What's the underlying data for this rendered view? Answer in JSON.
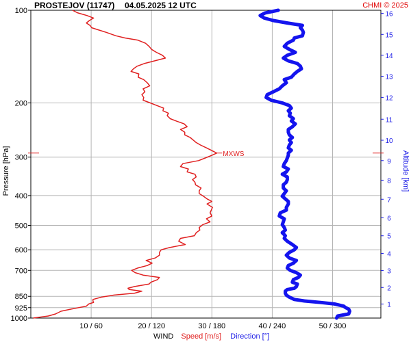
{
  "header": {
    "station": "PROSTEJOV (11747)",
    "datetime": "04.05.2025 12 UTC",
    "credit": "CHMI © 2025"
  },
  "colors": {
    "speed": "#e02020",
    "direction": "#1414ee",
    "altitude_axis": "#1a1ae6",
    "grid": "#b4b4b4",
    "credit": "#e00000"
  },
  "chart_data": {
    "type": "line",
    "title": "PROSTEJOV (11747)   04.05.2025 12 UTC",
    "ylabel": "Pressure [hPa]",
    "ylabel_right": "Altitude [km]",
    "xlabel": {
      "prefix": "WIND",
      "speed": "Speed [m/s]",
      "direction": "Direction [°]"
    },
    "y_scale": "log",
    "ylim_hpa": [
      1000,
      100
    ],
    "pressure_ticks": [
      100,
      200,
      300,
      400,
      500,
      600,
      700,
      850,
      925,
      1000
    ],
    "altitude_ticks_km": [
      1,
      2,
      3,
      4,
      5,
      6,
      7,
      8,
      9,
      10,
      11,
      12,
      13,
      14,
      15,
      16
    ],
    "altitude_positions_hpa": [
      900.2,
      795.4,
      701.0,
      616.8,
      540.4,
      472.2,
      411.1,
      356.5,
      307.9,
      264.4,
      225.9,
      191.9,
      163.9,
      140.0,
      119.8,
      102.4
    ],
    "x_ticks": [
      {
        "speed": 10,
        "direction": 60,
        "label": "10 / 60"
      },
      {
        "speed": 20,
        "direction": 120,
        "label": "20 / 120"
      },
      {
        "speed": 30,
        "direction": 180,
        "label": "30 / 180"
      },
      {
        "speed": 40,
        "direction": 240,
        "label": "40 / 240"
      },
      {
        "speed": 50,
        "direction": 300,
        "label": "50 / 300"
      }
    ],
    "xlim_speed": [
      0,
      58
    ],
    "grid": true,
    "mxws": {
      "label": "MXWS",
      "pressure_hpa": 291,
      "speed": 30.8
    },
    "series": [
      {
        "name": "Speed [m/s]",
        "unit": "m/s",
        "points": [
          [
            1000,
            0.4
          ],
          [
            985,
            2.9
          ],
          [
            970,
            4.1
          ],
          [
            950,
            5.0
          ],
          [
            935,
            6.7
          ],
          [
            925,
            7.9
          ],
          [
            915,
            9.2
          ],
          [
            900,
            9.6
          ],
          [
            890,
            10.4
          ],
          [
            880,
            10.3
          ],
          [
            870,
            10.3
          ],
          [
            855,
            11.7
          ],
          [
            842,
            13.8
          ],
          [
            830,
            17.2
          ],
          [
            818,
            18.4
          ],
          [
            808,
            16.3
          ],
          [
            800,
            16.1
          ],
          [
            790,
            17.2
          ],
          [
            775,
            19.6
          ],
          [
            765,
            19.9
          ],
          [
            750,
            21.0
          ],
          [
            738,
            21.3
          ],
          [
            725,
            18.6
          ],
          [
            712,
            17.3
          ],
          [
            700,
            16.7
          ],
          [
            688,
            17.7
          ],
          [
            675,
            19.3
          ],
          [
            663,
            20.1
          ],
          [
            650,
            19.1
          ],
          [
            638,
            20.6
          ],
          [
            625,
            21.3
          ],
          [
            612,
            21.3
          ],
          [
            600,
            21.6
          ],
          [
            590,
            23.0
          ],
          [
            577,
            25.6
          ],
          [
            563,
            24.5
          ],
          [
            551,
            24.8
          ],
          [
            540,
            27.1
          ],
          [
            528,
            27.4
          ],
          [
            518,
            28.0
          ],
          [
            508,
            27.9
          ],
          [
            497,
            28.5
          ],
          [
            487,
            29.7
          ],
          [
            476,
            29.1
          ],
          [
            466,
            30.0
          ],
          [
            455,
            29.7
          ],
          [
            446,
            29.9
          ],
          [
            437,
            30.1
          ],
          [
            426,
            29.2
          ],
          [
            418,
            30.0
          ],
          [
            410,
            29.2
          ],
          [
            402,
            28.6
          ],
          [
            394,
            27.9
          ],
          [
            386,
            27.9
          ],
          [
            378,
            28.2
          ],
          [
            369,
            27.3
          ],
          [
            362,
            27.2
          ],
          [
            355,
            26.8
          ],
          [
            348,
            27.4
          ],
          [
            341,
            27.2
          ],
          [
            335,
            25.9
          ],
          [
            328,
            26.1
          ],
          [
            322,
            24.8
          ],
          [
            315,
            25.2
          ],
          [
            308,
            27.8
          ],
          [
            302,
            28.9
          ],
          [
            296,
            30.0
          ],
          [
            291,
            30.8
          ],
          [
            285,
            29.9
          ],
          [
            280,
            29.1
          ],
          [
            274,
            28.1
          ],
          [
            269,
            27.4
          ],
          [
            264,
            26.9
          ],
          [
            259,
            26.4
          ],
          [
            254,
            25.5
          ],
          [
            249,
            25.5
          ],
          [
            244,
            24.8
          ],
          [
            239,
            25.9
          ],
          [
            234,
            25.4
          ],
          [
            229,
            24.1
          ],
          [
            225,
            23.1
          ],
          [
            220,
            22.6
          ],
          [
            216,
            22.8
          ],
          [
            212,
            21.9
          ],
          [
            208,
            22.0
          ],
          [
            204,
            20.9
          ],
          [
            200,
            19.8
          ],
          [
            196,
            18.6
          ],
          [
            192,
            18.7
          ],
          [
            188,
            18.4
          ],
          [
            184,
            18.9
          ],
          [
            180,
            18.6
          ],
          [
            176,
            19.7
          ],
          [
            172,
            19.3
          ],
          [
            168,
            18.7
          ],
          [
            165,
            17.8
          ],
          [
            161,
            17.9
          ],
          [
            158,
            16.6
          ],
          [
            155,
            17.0
          ],
          [
            152,
            17.6
          ],
          [
            149,
            18.8
          ],
          [
            146,
            20.5
          ],
          [
            143,
            22.3
          ],
          [
            140,
            21.8
          ],
          [
            137,
            20.8
          ],
          [
            134,
            20.0
          ],
          [
            131,
            19.6
          ],
          [
            128,
            19.0
          ],
          [
            125,
            17.7
          ],
          [
            123,
            15.6
          ],
          [
            121,
            14.1
          ],
          [
            118,
            12.5
          ],
          [
            116,
            11.3
          ],
          [
            114,
            10.1
          ],
          [
            112,
            9.8
          ],
          [
            110,
            9.2
          ],
          [
            108,
            9.7
          ],
          [
            106,
            10.4
          ],
          [
            104,
            9.3
          ],
          [
            102,
            7.8
          ],
          [
            100,
            6.9
          ]
        ]
      },
      {
        "name": "Direction [°]",
        "unit": "deg",
        "points": [
          [
            1000,
            304
          ],
          [
            985,
            305
          ],
          [
            970,
            316
          ],
          [
            950,
            317
          ],
          [
            935,
            316
          ],
          [
            925,
            313
          ],
          [
            915,
            311
          ],
          [
            900,
            302
          ],
          [
            890,
            288
          ],
          [
            880,
            272
          ],
          [
            870,
            262
          ],
          [
            855,
            257
          ],
          [
            842,
            254
          ],
          [
            830,
            253
          ],
          [
            818,
            253
          ],
          [
            808,
            255
          ],
          [
            800,
            262
          ],
          [
            790,
            264
          ],
          [
            775,
            265
          ],
          [
            765,
            260
          ],
          [
            750,
            261
          ],
          [
            738,
            266
          ],
          [
            725,
            268
          ],
          [
            712,
            264
          ],
          [
            700,
            258
          ],
          [
            688,
            255
          ],
          [
            675,
            256
          ],
          [
            663,
            261
          ],
          [
            650,
            264
          ],
          [
            638,
            257
          ],
          [
            625,
            254
          ],
          [
            612,
            257
          ],
          [
            600,
            262
          ],
          [
            590,
            264
          ],
          [
            577,
            260
          ],
          [
            563,
            255
          ],
          [
            551,
            252
          ],
          [
            540,
            253
          ],
          [
            528,
            250
          ],
          [
            518,
            253
          ],
          [
            508,
            252
          ],
          [
            497,
            250
          ],
          [
            487,
            251
          ],
          [
            476,
            252
          ],
          [
            466,
            247
          ],
          [
            455,
            248
          ],
          [
            446,
            254
          ],
          [
            437,
            254
          ],
          [
            426,
            256
          ],
          [
            418,
            256
          ],
          [
            410,
            253
          ],
          [
            402,
            250
          ],
          [
            394,
            252
          ],
          [
            386,
            254
          ],
          [
            378,
            251
          ],
          [
            369,
            251
          ],
          [
            362,
            254
          ],
          [
            355,
            255
          ],
          [
            348,
            255
          ],
          [
            341,
            250
          ],
          [
            335,
            254
          ],
          [
            328,
            256
          ],
          [
            322,
            251
          ],
          [
            315,
            252
          ],
          [
            308,
            254
          ],
          [
            302,
            255
          ],
          [
            296,
            256
          ],
          [
            291,
            256
          ],
          [
            285,
            259
          ],
          [
            280,
            256
          ],
          [
            274,
            257
          ],
          [
            269,
            259
          ],
          [
            264,
            257
          ],
          [
            259,
            260
          ],
          [
            254,
            257
          ],
          [
            249,
            256
          ],
          [
            244,
            256
          ],
          [
            239,
            260
          ],
          [
            234,
            263
          ],
          [
            229,
            259
          ],
          [
            225,
            261
          ],
          [
            220,
            257
          ],
          [
            216,
            258
          ],
          [
            212,
            256
          ],
          [
            208,
            259
          ],
          [
            204,
            257
          ],
          [
            200,
            250
          ],
          [
            196,
            239
          ],
          [
            192,
            234
          ],
          [
            188,
            235
          ],
          [
            184,
            241
          ],
          [
            180,
            247
          ],
          [
            176,
            250
          ],
          [
            172,
            254
          ],
          [
            168,
            252
          ],
          [
            165,
            259
          ],
          [
            161,
            262
          ],
          [
            158,
            265
          ],
          [
            155,
            269
          ],
          [
            152,
            268
          ],
          [
            149,
            265
          ],
          [
            146,
            256
          ],
          [
            143,
            251
          ],
          [
            140,
            255
          ],
          [
            137,
            263
          ],
          [
            134,
            257
          ],
          [
            131,
            252
          ],
          [
            128,
            255
          ],
          [
            125,
            261
          ],
          [
            123,
            262
          ],
          [
            121,
            270
          ],
          [
            118,
            271
          ],
          [
            116,
            270
          ],
          [
            114,
            268
          ],
          [
            112,
            270
          ],
          [
            110,
            255
          ],
          [
            108,
            241
          ],
          [
            106,
            232
          ],
          [
            104,
            228
          ],
          [
            102,
            233
          ],
          [
            100,
            246
          ]
        ]
      }
    ]
  }
}
